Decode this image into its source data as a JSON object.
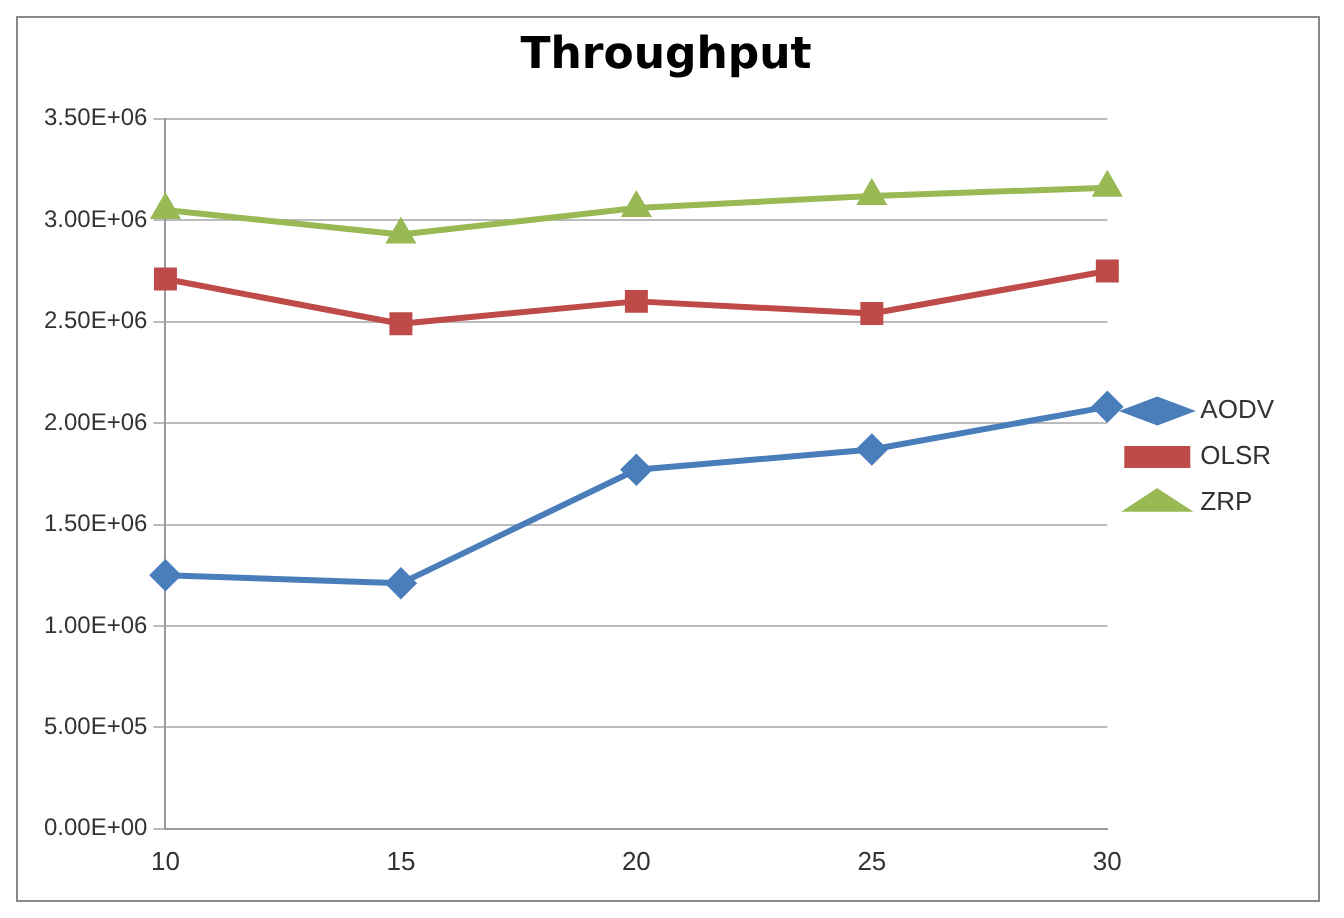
{
  "chart_data": {
    "type": "line",
    "title": "Throughput",
    "categories": [
      "10",
      "15",
      "20",
      "25",
      "30"
    ],
    "series": [
      {
        "name": "AODV",
        "color": "#4a7ebb",
        "marker": "diamond",
        "values": [
          1250000,
          1210000,
          1770000,
          1870000,
          2080000
        ]
      },
      {
        "name": "OLSR",
        "color": "#be4b48",
        "marker": "square",
        "values": [
          2710000,
          2490000,
          2600000,
          2540000,
          2750000
        ]
      },
      {
        "name": "ZRP",
        "color": "#98b954",
        "marker": "triangle",
        "values": [
          3050000,
          2930000,
          3060000,
          3120000,
          3160000
        ]
      }
    ],
    "ylim": [
      0,
      3500000
    ],
    "yticks": [
      {
        "value": 0,
        "label": "0.00E+00"
      },
      {
        "value": 500000,
        "label": "5.00E+05"
      },
      {
        "value": 1000000,
        "label": "1.00E+06"
      },
      {
        "value": 1500000,
        "label": "1.50E+06"
      },
      {
        "value": 2000000,
        "label": "2.00E+06"
      },
      {
        "value": 2500000,
        "label": "2.50E+06"
      },
      {
        "value": 3000000,
        "label": "3.00E+06"
      },
      {
        "value": 3500000,
        "label": "3.50E+06"
      }
    ],
    "grid": "y",
    "legend": "right",
    "line_style": "solid"
  }
}
